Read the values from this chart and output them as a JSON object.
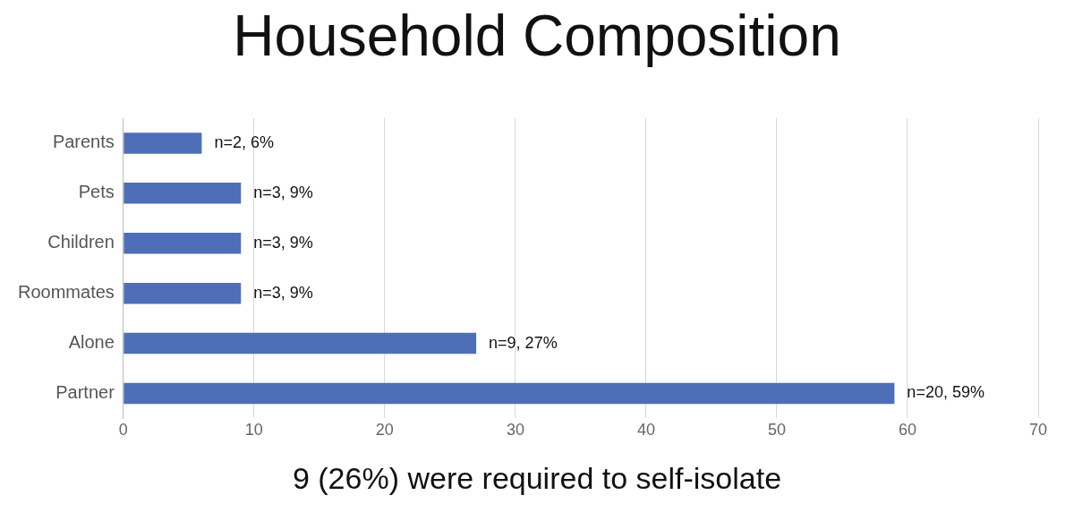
{
  "chart_data": {
    "type": "bar",
    "orientation": "horizontal",
    "title": "Household Composition",
    "categories": [
      "Parents",
      "Pets",
      "Children",
      "Roommates",
      "Alone",
      "Partner"
    ],
    "values": [
      6,
      9,
      9,
      9,
      27,
      59
    ],
    "value_labels": [
      "n=2, 6%",
      "n=3, 9%",
      "n=3, 9%",
      "n=3, 9%",
      "n=9, 27%",
      "n=20, 59%"
    ],
    "color": "#4e6fb8",
    "xlim": [
      0,
      70
    ],
    "xticks": [
      0,
      10,
      20,
      30,
      40,
      50,
      60,
      70
    ],
    "grid": "x",
    "annotations": [
      "9 (26%) were required to self-isolate"
    ]
  }
}
